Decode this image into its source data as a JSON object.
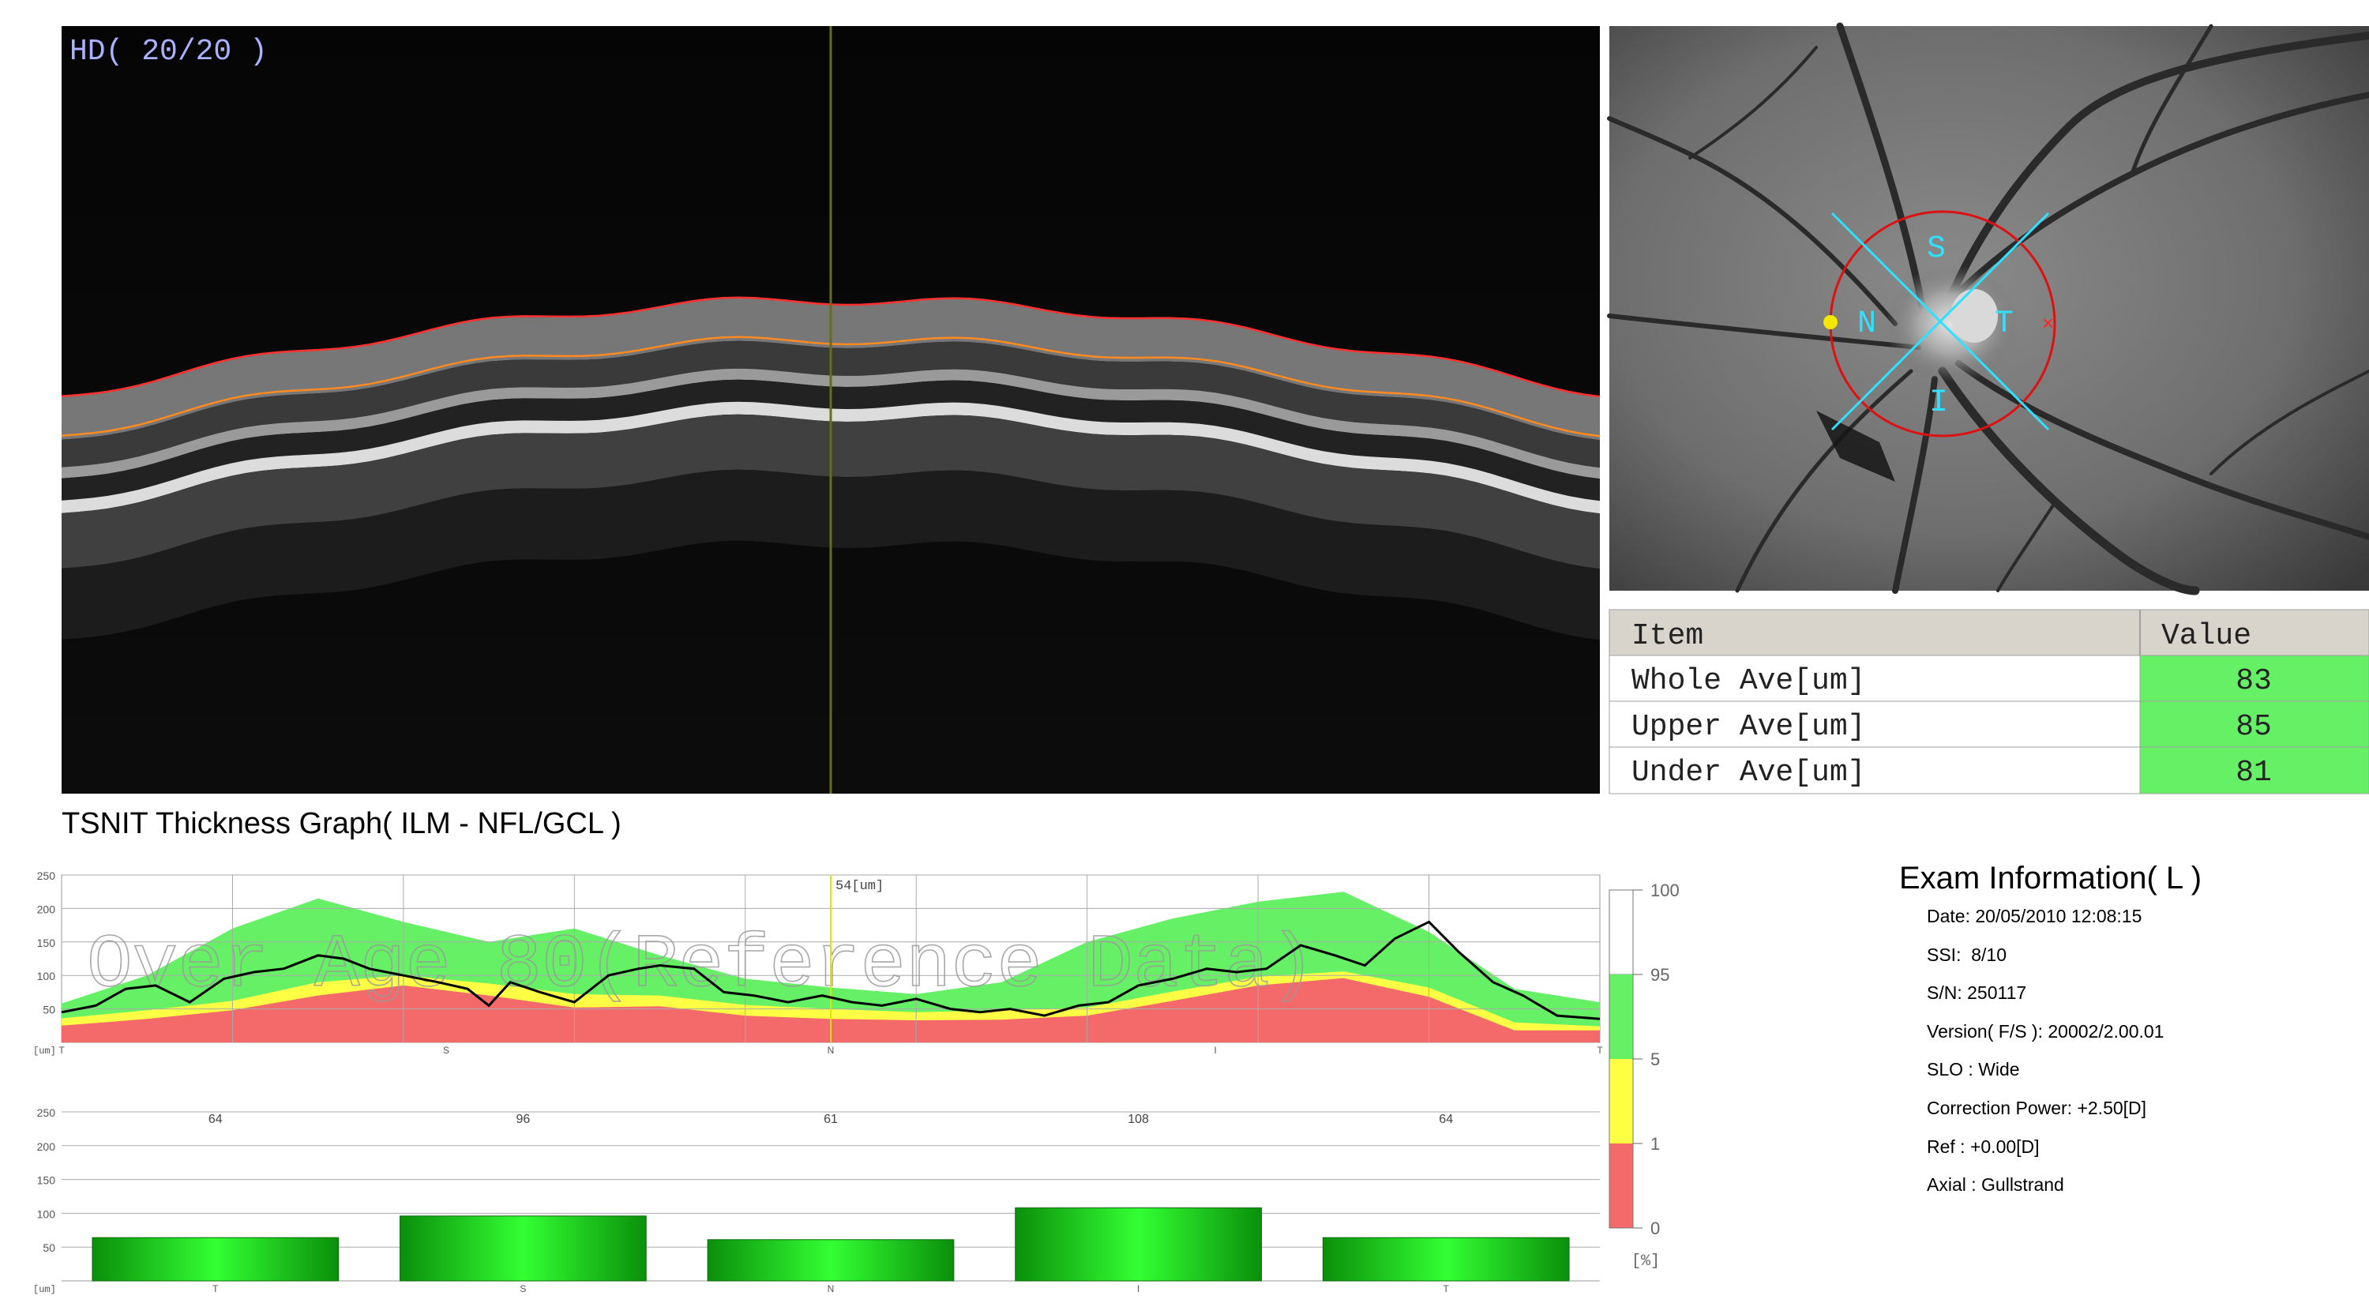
{
  "oct_scan": {
    "label": "HD( 20/20 )"
  },
  "fundus": {
    "sectors": {
      "superior": "S",
      "nasal": "N",
      "temporal": "T",
      "inferior": "I"
    }
  },
  "measurements": {
    "header": {
      "item": "Item",
      "value": "Value"
    },
    "rows": [
      {
        "item": "Whole Ave[um]",
        "value": "83"
      },
      {
        "item": "Upper Ave[um]",
        "value": "85"
      },
      {
        "item": "Under Ave[um]",
        "value": "81"
      }
    ]
  },
  "graph_title": "TSNIT Thickness Graph( ILM - NFL/GCL )",
  "colors": {
    "red_band": "#f46a6a",
    "yellow_band": "#fefe44",
    "green_band": "#66f066",
    "oct_red_line": "#ff3030",
    "oct_orange_line": "#ff8a20",
    "fundus_circle": "#dd1111",
    "fundus_cross": "#30e0ff",
    "green_cell": "#66f066",
    "bar_dark": "#0b8f0b",
    "bar_light": "#33ff33"
  },
  "chart_data": [
    {
      "type": "area",
      "title": "",
      "watermark": "Over Age 80(Reference Data)",
      "ylabel": "[um]",
      "ylim": [
        0,
        250
      ],
      "yticks": [
        50,
        100,
        150,
        200,
        250
      ],
      "xtick_labels": [
        "T",
        "S",
        "N",
        "I",
        "T"
      ],
      "cursor_label": "54[um]",
      "x": [
        0,
        20,
        40,
        60,
        80,
        100,
        120,
        140,
        160,
        180,
        200,
        220,
        240,
        260,
        280,
        300,
        320,
        340,
        360
      ],
      "percentile_bands": {
        "p1_red_top": [
          25,
          35,
          48,
          70,
          85,
          70,
          52,
          54,
          40,
          35,
          33,
          34,
          40,
          62,
          85,
          96,
          68,
          18,
          18
        ],
        "p5_yellow_top": [
          36,
          48,
          62,
          90,
          100,
          88,
          72,
          70,
          56,
          50,
          45,
          48,
          52,
          76,
          98,
          106,
          82,
          30,
          24
        ],
        "p95_green_top": [
          58,
          100,
          170,
          215,
          180,
          150,
          170,
          130,
          95,
          82,
          72,
          90,
          150,
          185,
          210,
          225,
          165,
          80,
          60
        ]
      },
      "series": [
        {
          "name": "",
          "x": [
            0,
            8,
            15,
            22,
            30,
            38,
            45,
            52,
            60,
            66,
            72,
            80,
            88,
            95,
            100,
            105,
            112,
            120,
            128,
            135,
            140,
            148,
            155,
            162,
            170,
            178,
            185,
            192,
            200,
            208,
            215,
            222,
            230,
            238,
            245,
            252,
            260,
            268,
            275,
            282,
            290,
            298,
            305,
            312,
            320,
            327,
            335,
            342,
            350,
            360
          ],
          "values": [
            45,
            55,
            80,
            85,
            60,
            95,
            105,
            110,
            130,
            125,
            110,
            100,
            90,
            80,
            55,
            90,
            75,
            60,
            100,
            110,
            115,
            110,
            75,
            70,
            60,
            70,
            60,
            55,
            65,
            50,
            45,
            50,
            40,
            55,
            60,
            85,
            95,
            110,
            105,
            110,
            145,
            130,
            115,
            155,
            180,
            135,
            90,
            70,
            40,
            35
          ]
        }
      ]
    },
    {
      "type": "bar",
      "title": "",
      "ylabel": "[um]",
      "ylim": [
        0,
        250
      ],
      "yticks": [
        50,
        100,
        150,
        200,
        250
      ],
      "categories": [
        "T",
        "S",
        "N",
        "I",
        "T"
      ],
      "values": [
        64,
        96,
        61,
        108,
        64
      ]
    }
  ],
  "percentile_legend": {
    "labels": [
      "100",
      "95",
      "5",
      "1",
      "0"
    ],
    "unit": "[%]"
  },
  "exam_info": {
    "title": "Exam Information( L )",
    "rows": [
      "Date: 20/05/2010 12:08:15",
      "SSI:  8/10",
      "S/N: 250117",
      "Version( F/S ): 20002/2.00.01",
      "SLO : Wide",
      "Correction Power: +2.50[D]",
      "Ref : +0.00[D]",
      "Axial : Gullstrand"
    ]
  }
}
